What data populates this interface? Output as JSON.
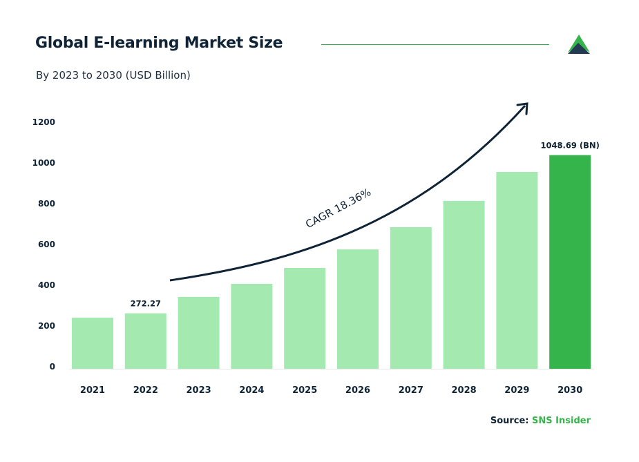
{
  "header": {
    "title": "Global E-learning Market Size",
    "subtitle": "By 2023 to 2030 (USD Billion)"
  },
  "footer": {
    "source_label": "Source:",
    "source_name": "SNS Insider"
  },
  "colors": {
    "bar": "#a3e9b0",
    "highlight_bar": "#34b44a",
    "text": "#0f2336",
    "accent": "#34b44a"
  },
  "chart_data": {
    "type": "bar",
    "categories": [
      "2021",
      "2022",
      "2023",
      "2024",
      "2025",
      "2026",
      "2027",
      "2028",
      "2029",
      "2030"
    ],
    "values": [
      251,
      272.27,
      353,
      417,
      495,
      586,
      695,
      824,
      966,
      1048.69
    ],
    "data_labels": [
      {
        "category": "2022",
        "text": "272.27"
      },
      {
        "category": "2030",
        "text": "1048.69 (BN)"
      }
    ],
    "highlight": "2030",
    "yticks": [
      0,
      200,
      400,
      600,
      800,
      1000,
      1200
    ],
    "ylim": [
      0,
      1200
    ],
    "grid": false,
    "annotation": "CAGR 18.36%"
  }
}
